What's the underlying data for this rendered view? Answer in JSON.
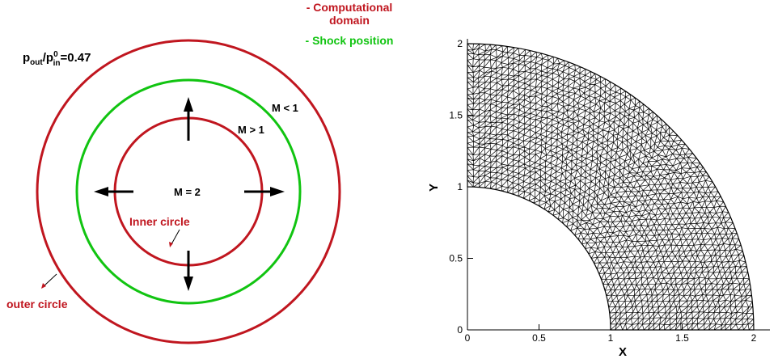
{
  "colors": {
    "domain": "#c0161f",
    "shock": "#11c411",
    "arrow": "#000000",
    "mesh": "#000000",
    "mesh_fill": "#ffffff"
  },
  "legend": {
    "domain_line1": "- Computational",
    "domain_line2": "domain",
    "shock": "- Shock position"
  },
  "pressure_label": {
    "p1": "p",
    "sub_out": "out",
    "slash": "/p",
    "sup": "0",
    "sub_in": "in",
    "value": "=0.47"
  },
  "labels": {
    "m_less": "M < 1",
    "m_greater": "M > 1",
    "m_center": "M = 2",
    "inner_circle": "Inner circle",
    "outer_circle": "outer circle"
  },
  "mesh_plot": {
    "xlabel": "X",
    "ylabel": "Y",
    "x_ticks": [
      "0",
      "0.5",
      "1",
      "1.5",
      "2"
    ],
    "y_ticks": [
      "0",
      "0.5",
      "1",
      "1.5",
      "2"
    ],
    "xlim": [
      0,
      2
    ],
    "ylim": [
      0,
      2
    ],
    "inner_radius": 1,
    "outer_radius": 2
  }
}
